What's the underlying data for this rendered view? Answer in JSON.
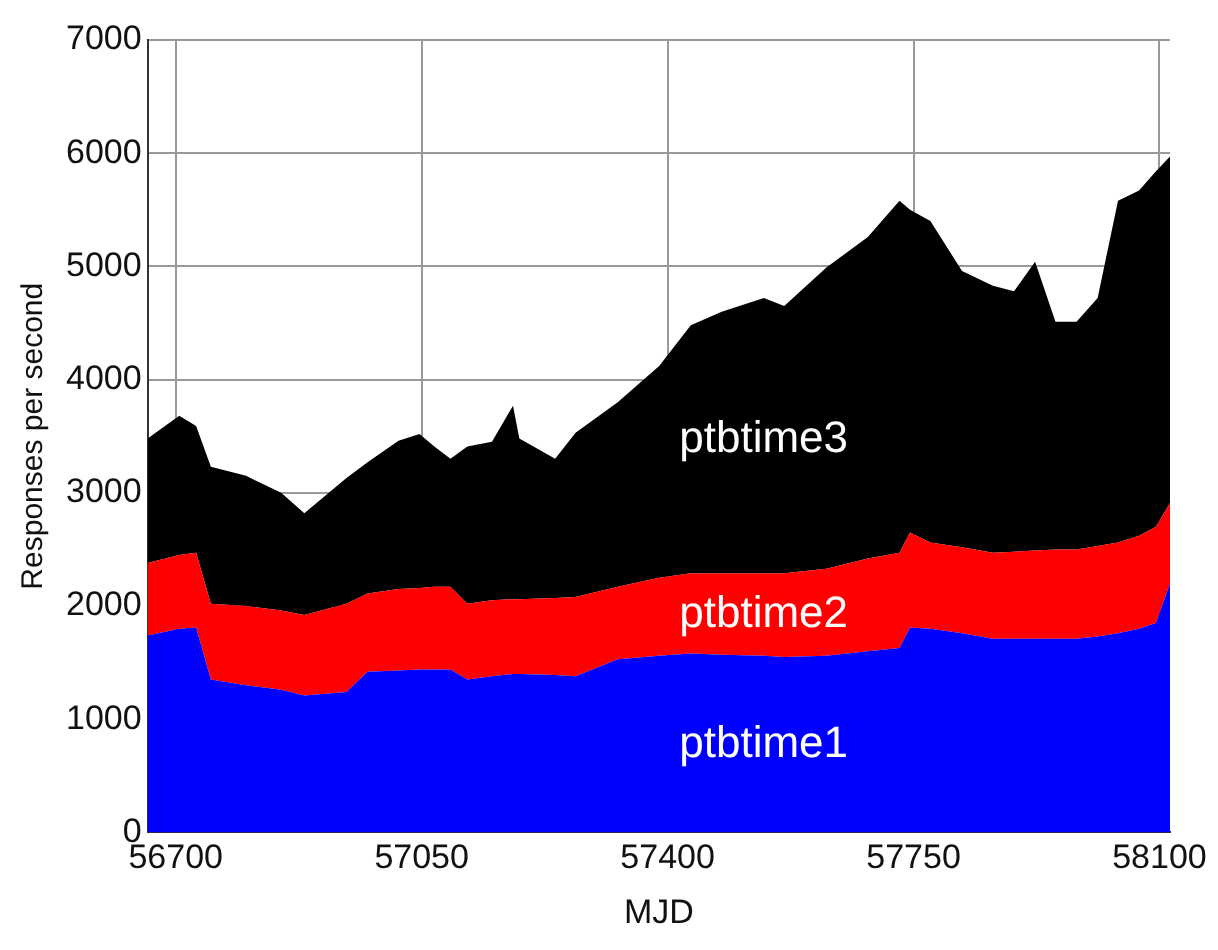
{
  "chart_data": {
    "type": "area",
    "stacked": true,
    "xlabel": "MJD",
    "ylabel": "Responses per second",
    "x": [
      56660,
      56705,
      56729,
      56750,
      56800,
      56850,
      56883,
      56943,
      56973,
      57017,
      57047,
      57068,
      57091,
      57115,
      57150,
      57180,
      57189,
      57240,
      57269,
      57329,
      57388,
      57433,
      57477,
      57537,
      57566,
      57626,
      57685,
      57730,
      57745,
      57774,
      57819,
      57863,
      57893,
      57923,
      57952,
      57982,
      58012,
      58041,
      58071,
      58095,
      58115
    ],
    "series": [
      {
        "name": "ptbtime1",
        "color": "#0000ff",
        "values": [
          1740,
          1800,
          1810,
          1350,
          1300,
          1260,
          1210,
          1240,
          1420,
          1430,
          1440,
          1440,
          1440,
          1350,
          1380,
          1400,
          1400,
          1390,
          1380,
          1530,
          1560,
          1580,
          1570,
          1560,
          1550,
          1560,
          1600,
          1630,
          1810,
          1800,
          1760,
          1710,
          1710,
          1710,
          1710,
          1710,
          1730,
          1760,
          1800,
          1850,
          2200
        ]
      },
      {
        "name": "ptbtime2",
        "color": "#ff0000",
        "values": [
          640,
          650,
          660,
          670,
          700,
          700,
          710,
          780,
          690,
          720,
          720,
          730,
          730,
          670,
          670,
          660,
          660,
          680,
          700,
          640,
          690,
          710,
          720,
          730,
          740,
          770,
          820,
          840,
          840,
          760,
          760,
          760,
          770,
          780,
          790,
          790,
          800,
          800,
          820,
          850,
          710
        ]
      },
      {
        "name": "ptbtime3",
        "color": "#000000",
        "values": [
          1100,
          1230,
          1120,
          1210,
          1150,
          1040,
          900,
          1110,
          1160,
          1310,
          1360,
          1240,
          1130,
          1390,
          1400,
          1710,
          1420,
          1230,
          1450,
          1630,
          1870,
          2190,
          2310,
          2430,
          2360,
          2660,
          2840,
          3110,
          2850,
          2840,
          2440,
          2360,
          2300,
          2550,
          2010,
          2010,
          2190,
          3020,
          3050,
          3140,
          3060
        ]
      }
    ],
    "xlim": [
      56660,
      58115
    ],
    "xticks": [
      56700,
      57050,
      57400,
      57750,
      58100
    ],
    "ylim": [
      0,
      7000
    ],
    "yticks": [
      0,
      1000,
      2000,
      3000,
      4000,
      5000,
      6000,
      7000
    ],
    "grid": true,
    "legend": false
  }
}
